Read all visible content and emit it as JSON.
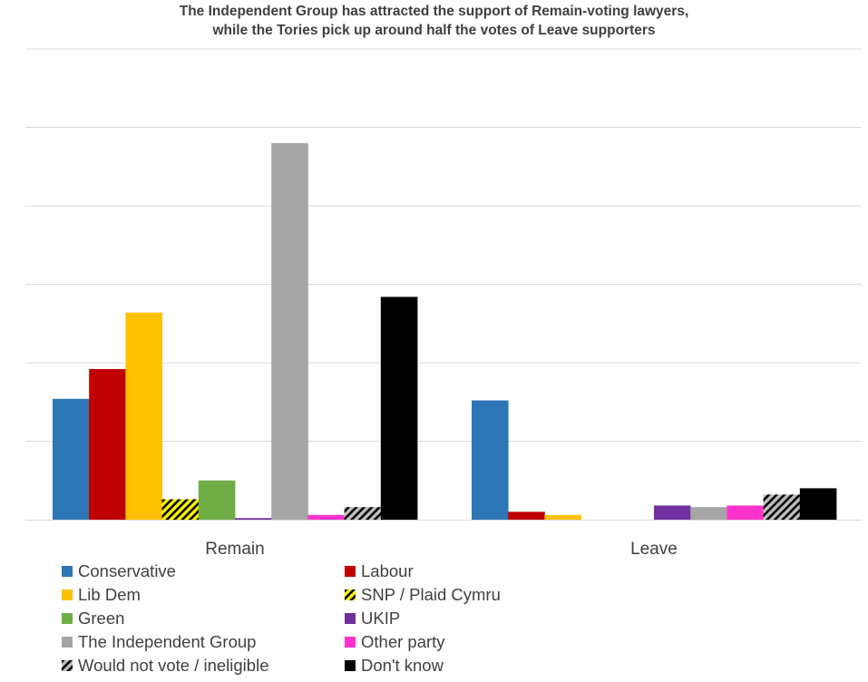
{
  "chart_data": {
    "type": "bar",
    "title_lines": [
      "The Independent Group has attracted the support of Remain-voting lawyers,",
      "while the Tories pick up around half the votes of Leave supporters"
    ],
    "categories": [
      "Remain",
      "Leave"
    ],
    "ylim": [
      0,
      30
    ],
    "y_tick_labels_shown": false,
    "grid": true,
    "legend_position": "bottom",
    "series": [
      {
        "name": "Conservative",
        "color": "#2E75B6",
        "pattern": "solid",
        "values": [
          7.7,
          7.6
        ]
      },
      {
        "name": "Labour",
        "color": "#C00000",
        "pattern": "solid",
        "values": [
          9.6,
          0.5
        ]
      },
      {
        "name": "Lib Dem",
        "color": "#FFC000",
        "pattern": "solid",
        "values": [
          13.2,
          0.3
        ]
      },
      {
        "name": "SNP / Plaid Cymru",
        "color": "#FFFF00",
        "pattern": "hatched",
        "values": [
          1.3,
          0.0
        ]
      },
      {
        "name": "Green",
        "color": "#70AD47",
        "pattern": "solid",
        "values": [
          2.5,
          0.0
        ]
      },
      {
        "name": "UKIP",
        "color": "#7030A0",
        "pattern": "solid",
        "values": [
          0.1,
          0.9
        ]
      },
      {
        "name": "The Independent Group",
        "color": "#A5A5A5",
        "pattern": "solid",
        "values": [
          24.0,
          0.8
        ]
      },
      {
        "name": "Other party",
        "color": "#FF33CC",
        "pattern": "solid",
        "values": [
          0.3,
          0.9
        ]
      },
      {
        "name": "Would not vote / ineligible",
        "color": "#BFBFBF",
        "pattern": "hatched",
        "values": [
          0.8,
          1.6
        ]
      },
      {
        "name": "Don't know",
        "color": "#000000",
        "pattern": "solid",
        "values": [
          14.2,
          2.0
        ]
      }
    ]
  }
}
